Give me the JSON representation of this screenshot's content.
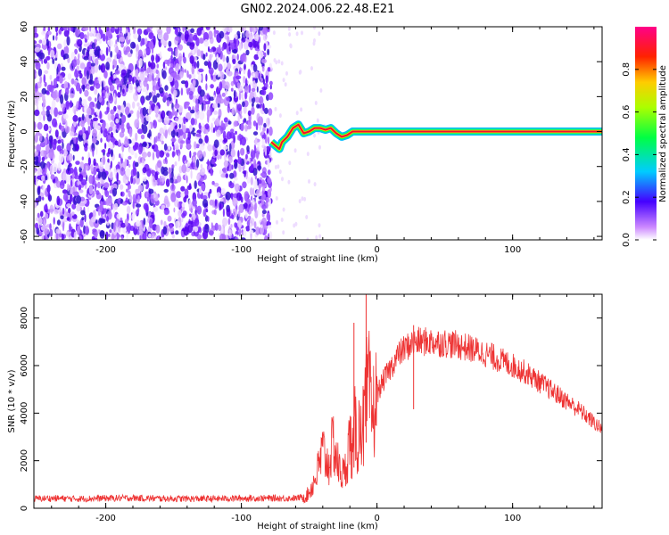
{
  "figure_title": "GN02.2024.006.22.48.E21",
  "chart_data": [
    {
      "type": "heatmap",
      "panel": "top",
      "title": "",
      "xlabel": "Height of straight line (km)",
      "ylabel": "Frequency (Hz)",
      "xlim": [
        -253,
        166
      ],
      "ylim": [
        -62,
        60
      ],
      "x_ticks": [
        -200,
        -100,
        0,
        100
      ],
      "y_ticks": [
        -60,
        -40,
        -20,
        0,
        20,
        40,
        60
      ],
      "grid": false,
      "noise_region_km": [
        -253,
        -78
      ],
      "signal_trace": {
        "description_points_x_km": [
          -78,
          -75,
          -72,
          -70,
          -66,
          -62,
          -58,
          -54,
          -50,
          -46,
          -42,
          -38,
          -34,
          -30,
          -26,
          -22,
          -18,
          -12,
          0,
          40,
          80,
          120,
          166
        ],
        "description_points_y_hz": [
          -6,
          -8,
          -10,
          -6,
          -3,
          2,
          4,
          -1,
          0,
          2,
          2,
          1,
          2,
          -1,
          -3,
          -2,
          0,
          0,
          0,
          0,
          0,
          0,
          0
        ]
      },
      "colorbar": {
        "label": "Normalized spectral amplitude",
        "range": [
          0.0,
          1.0
        ],
        "ticks": [
          0.0,
          0.2,
          0.4,
          0.6,
          0.8
        ],
        "tick_labels": [
          "0.0",
          "0.2",
          "0.4",
          "0.6",
          "0.8"
        ],
        "colormap": "rainbow"
      }
    },
    {
      "type": "line",
      "panel": "bottom",
      "title": "",
      "xlabel": "Height of straight line (km)",
      "ylabel": "SNR (10 * v/v)",
      "xlim": [
        -253,
        166
      ],
      "ylim": [
        0,
        9000
      ],
      "x_ticks": [
        -200,
        -100,
        0,
        100
      ],
      "y_ticks": [
        0,
        2000,
        4000,
        6000,
        8000
      ],
      "grid": false,
      "series": [
        {
          "color": "#ee3333",
          "x": [
            -253,
            -240,
            -220,
            -200,
            -180,
            -160,
            -140,
            -120,
            -100,
            -80,
            -60,
            -52,
            -48,
            -44,
            -40,
            -36,
            -32,
            -28,
            -24,
            -20,
            -18,
            -16,
            -14,
            -12,
            -10,
            -8,
            -6,
            -4,
            -2,
            0,
            5,
            10,
            15,
            20,
            25,
            30,
            40,
            50,
            60,
            70,
            80,
            90,
            100,
            110,
            120,
            130,
            140,
            150,
            160,
            166
          ],
          "y": [
            400,
            420,
            400,
            420,
            430,
            410,
            400,
            400,
            420,
            420,
            420,
            500,
            900,
            1500,
            2400,
            1800,
            2800,
            1600,
            1400,
            3000,
            2200,
            3500,
            2800,
            4000,
            3300,
            4600,
            5000,
            3800,
            4200,
            4800,
            5400,
            5900,
            6400,
            6700,
            6900,
            7000,
            7000,
            6950,
            6850,
            6700,
            6500,
            6250,
            6000,
            5700,
            5300,
            4900,
            4500,
            4100,
            3600,
            3300
          ],
          "spikes": [
            {
              "x": -17,
              "y": 7800
            },
            {
              "x": -8,
              "y": 9000
            },
            {
              "x": 27,
              "y": 7700
            }
          ]
        }
      ]
    }
  ]
}
